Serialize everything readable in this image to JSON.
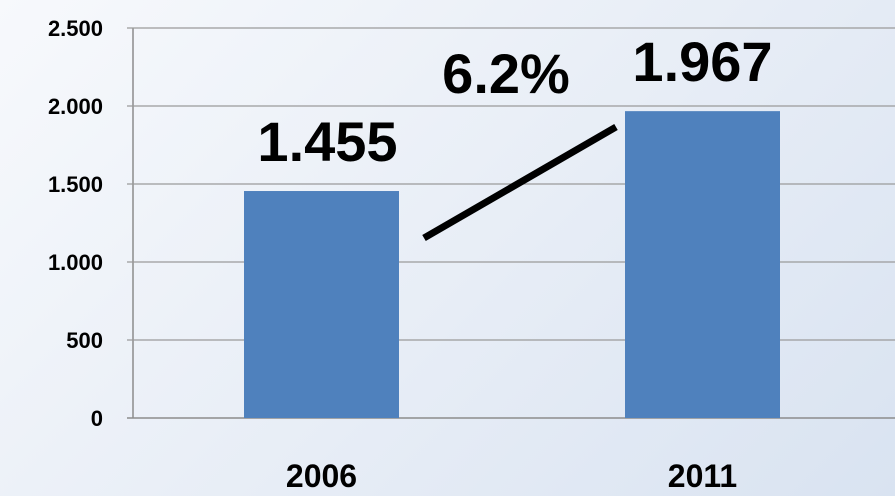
{
  "chart_data": {
    "type": "bar",
    "categories": [
      "2006",
      "2011"
    ],
    "values": [
      1455,
      1967
    ],
    "data_labels": [
      "1.455",
      "1.967"
    ],
    "ylim": [
      0,
      2500
    ],
    "yticks": [
      0,
      500,
      1000,
      1500,
      2000,
      2500
    ],
    "ytick_labels": [
      "0",
      "500",
      "1.000",
      "1.500",
      "2.000",
      "2.500"
    ],
    "grid": true,
    "legend": "none",
    "annotation": "6.2%",
    "bar_color": "#4f81bd",
    "title": "",
    "xlabel": "",
    "ylabel": ""
  }
}
